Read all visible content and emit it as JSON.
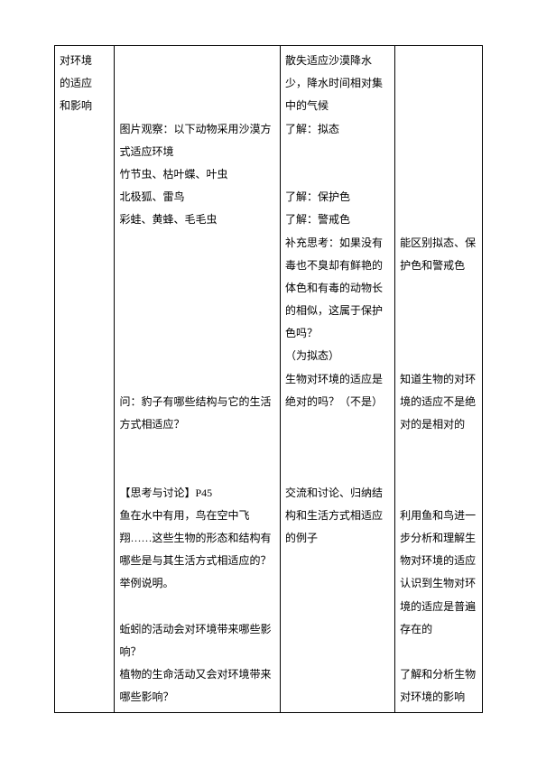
{
  "col1": {
    "l1": "对环境",
    "l2": "的适应",
    "l3": "和影响"
  },
  "col2": {
    "p1": "图片观察：以下动物采用沙漠方式适应环境",
    "p2": "竹节虫、枯叶蝶、叶虫",
    "p3": "北极狐、雷鸟",
    "p4": "彩蛙、黄蜂、毛毛虫",
    "p5": "问：豹子有哪些结构与它的生活方式相适应？",
    "p6": "【思考与讨论】P45",
    "p7": "鱼在水中有用，鸟在空中飞翔……这些生物的形态和结构有哪些是与其生活方式相适应的？举例说明。",
    "p8": "蚯蚓的活动会对环境带来哪些影响？",
    "p9": "植物的生命活动又会对环境带来哪些影响？"
  },
  "col3": {
    "p1": "散失适应沙漠降水少，降水时间相对集中的气候",
    "p2": "了解：拟态",
    "p3": "了解：保护色",
    "p4": "了解：警戒色",
    "p5": "补充思考：如果没有毒也不臭却有鲜艳的体色和有毒的动物长的相似，这属于保护色吗？",
    "p6": "（为拟态）",
    "p7": "生物对环境的适应是绝对的吗？（不是）",
    "p8": "交流和讨论、归纳结构和生活方式相适应的例子"
  },
  "col4": {
    "p1": "能区别拟态、保护色和警戒色",
    "p2": "知道生物的对环境的适应不是绝对的是相对的",
    "p3": "利用鱼和鸟进一步分析和理解生物对环境的适应认识到生物对环境的适应是普遍存在的",
    "p4": "了解和分析生物对环境的影响"
  }
}
